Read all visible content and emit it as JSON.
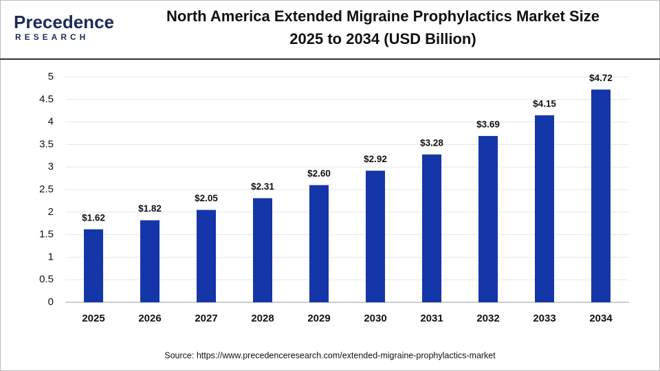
{
  "logo": {
    "name": "Precedence",
    "tagline": "RESEARCH"
  },
  "chart_data": {
    "type": "bar",
    "title": [
      "North America Extended Migraine Prophylactics Market Size",
      "2025 to 2034 (USD Billion)"
    ],
    "categories": [
      "2025",
      "2026",
      "2027",
      "2028",
      "2029",
      "2030",
      "2031",
      "2032",
      "2033",
      "2034"
    ],
    "values": [
      1.62,
      1.82,
      2.05,
      2.31,
      2.6,
      2.92,
      3.28,
      3.69,
      4.15,
      4.72
    ],
    "value_labels": [
      "$1.62",
      "$1.82",
      "$2.05",
      "$2.31",
      "$2.60",
      "$2.92",
      "$3.28",
      "$3.69",
      "$4.15",
      "$4.72"
    ],
    "color": "#1436a8",
    "ylim": [
      0,
      5
    ],
    "yticks": [
      0,
      0.5,
      1,
      1.5,
      2,
      2.5,
      3,
      3.5,
      4,
      4.5,
      5
    ],
    "grid": true,
    "source": "Source: https://www.precedenceresearch.com/extended-migraine-prophylactics-market"
  }
}
